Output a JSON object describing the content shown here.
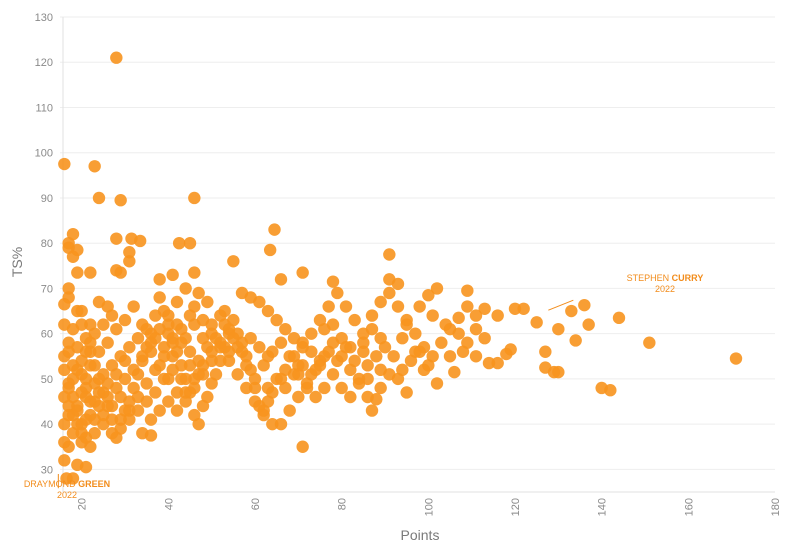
{
  "chart_data": {
    "type": "scatter",
    "title": "",
    "xlabel": "Points",
    "ylabel": "TS%",
    "xlim": [
      15,
      180
    ],
    "ylim": [
      25,
      130
    ],
    "x_ticks": [
      20,
      40,
      60,
      80,
      100,
      120,
      140,
      160,
      180
    ],
    "y_ticks": [
      30,
      40,
      50,
      60,
      70,
      80,
      90,
      100,
      110,
      120,
      130
    ],
    "grid": "horizontal",
    "colors": {
      "point": "#f7931e",
      "grid": "#eeeeee",
      "annotation": "#f28c1b"
    },
    "annotations": [
      {
        "line1_normal": "STEPHEN ",
        "line1_bold": "CURRY",
        "line2": "2022",
        "x": 136,
        "y": 66.3
      },
      {
        "line1_normal": "DRAYMOND ",
        "line1_bold": "GREEN",
        "line2": "2022",
        "x": 16,
        "y": 27.6
      }
    ],
    "points": [
      [
        28,
        121
      ],
      [
        16,
        97.5
      ],
      [
        23,
        97
      ],
      [
        24,
        90
      ],
      [
        29,
        89.5
      ],
      [
        46,
        90
      ],
      [
        64.5,
        83
      ],
      [
        18,
        82
      ],
      [
        28,
        81
      ],
      [
        31.5,
        81
      ],
      [
        33.5,
        80.5
      ],
      [
        42.5,
        80
      ],
      [
        45,
        80
      ],
      [
        17,
        80
      ],
      [
        17,
        79
      ],
      [
        19,
        78.5
      ],
      [
        31,
        78
      ],
      [
        63.5,
        78.5
      ],
      [
        91,
        77.5
      ],
      [
        55,
        76
      ],
      [
        31,
        76
      ],
      [
        18,
        77
      ],
      [
        17,
        70
      ],
      [
        17,
        68
      ],
      [
        16,
        66.5
      ],
      [
        19,
        73.5
      ],
      [
        22,
        73.5
      ],
      [
        28,
        74
      ],
      [
        29,
        73.5
      ],
      [
        38,
        72
      ],
      [
        41,
        73
      ],
      [
        46,
        73.5
      ],
      [
        66,
        72
      ],
      [
        71,
        73.5
      ],
      [
        78,
        71.5
      ],
      [
        91,
        72
      ],
      [
        93,
        71
      ],
      [
        102,
        70
      ],
      [
        109,
        69.5
      ],
      [
        136,
        66.3
      ],
      [
        144,
        63.5
      ],
      [
        137,
        62
      ],
      [
        151,
        58
      ],
      [
        171,
        54.5
      ],
      [
        140,
        48
      ],
      [
        142,
        47.5
      ],
      [
        130,
        51.5
      ],
      [
        129,
        51.5
      ],
      [
        134,
        58.5
      ],
      [
        130,
        61
      ],
      [
        125,
        62.5
      ],
      [
        127,
        56
      ],
      [
        127,
        52.5
      ],
      [
        133,
        65
      ],
      [
        120,
        65.5
      ],
      [
        122,
        65.5
      ],
      [
        116,
        64
      ],
      [
        119,
        56.5
      ],
      [
        113,
        65.5
      ],
      [
        111,
        64
      ],
      [
        109,
        66
      ],
      [
        107,
        63.5
      ],
      [
        104,
        62
      ],
      [
        101,
        64
      ],
      [
        98,
        66
      ],
      [
        95,
        62
      ],
      [
        94,
        59
      ],
      [
        97,
        56
      ],
      [
        99,
        52
      ],
      [
        100,
        68.5
      ],
      [
        105,
        55
      ],
      [
        108,
        56
      ],
      [
        111,
        55
      ],
      [
        114,
        53.5
      ],
      [
        116,
        53.5
      ],
      [
        118,
        55.5
      ],
      [
        106,
        51.5
      ],
      [
        102,
        49
      ],
      [
        95,
        47
      ],
      [
        91,
        51
      ],
      [
        93,
        50
      ],
      [
        89,
        52
      ],
      [
        87,
        43
      ],
      [
        88,
        45.5
      ],
      [
        89,
        48
      ],
      [
        86,
        50
      ],
      [
        85,
        56
      ],
      [
        82,
        57
      ],
      [
        80,
        59
      ],
      [
        78,
        62
      ],
      [
        76,
        61
      ],
      [
        75,
        54
      ],
      [
        73,
        56
      ],
      [
        71,
        58
      ],
      [
        70,
        53
      ],
      [
        69,
        55
      ],
      [
        67,
        52
      ],
      [
        66,
        50
      ],
      [
        64,
        47
      ],
      [
        63,
        45
      ],
      [
        62,
        42
      ],
      [
        61,
        44
      ],
      [
        60,
        48
      ],
      [
        59,
        52
      ],
      [
        58,
        55
      ],
      [
        57,
        58
      ],
      [
        56,
        60
      ],
      [
        55,
        63
      ],
      [
        54,
        61
      ],
      [
        53,
        57
      ],
      [
        52,
        54
      ],
      [
        51,
        51
      ],
      [
        50,
        49
      ],
      [
        49,
        46
      ],
      [
        48,
        44
      ],
      [
        47,
        40
      ],
      [
        46,
        42
      ],
      [
        45,
        47
      ],
      [
        44,
        50
      ],
      [
        43,
        53
      ],
      [
        42,
        56
      ],
      [
        41,
        59
      ],
      [
        40,
        62
      ],
      [
        39,
        65
      ],
      [
        38,
        68
      ],
      [
        37,
        64
      ],
      [
        36,
        60
      ],
      [
        35,
        57
      ],
      [
        34,
        54
      ],
      [
        33,
        51
      ],
      [
        32,
        48
      ],
      [
        31,
        45
      ],
      [
        30,
        43
      ],
      [
        29,
        39
      ],
      [
        28,
        37
      ],
      [
        27,
        41
      ],
      [
        26,
        44
      ],
      [
        25,
        47
      ],
      [
        24,
        50
      ],
      [
        23,
        53
      ],
      [
        22,
        56
      ],
      [
        21,
        59
      ],
      [
        20,
        62
      ],
      [
        19,
        65
      ],
      [
        18,
        61
      ],
      [
        17,
        58
      ],
      [
        16,
        55
      ],
      [
        16,
        52
      ],
      [
        17,
        49
      ],
      [
        18,
        46
      ],
      [
        19,
        43
      ],
      [
        20,
        40
      ],
      [
        21,
        37
      ],
      [
        22,
        35
      ],
      [
        19,
        31
      ],
      [
        21,
        30.5
      ],
      [
        16,
        32
      ],
      [
        17,
        35
      ],
      [
        16,
        36
      ],
      [
        18,
        28
      ],
      [
        16.5,
        28
      ],
      [
        24,
        67
      ],
      [
        26,
        66
      ],
      [
        27,
        64
      ],
      [
        25,
        62
      ],
      [
        23,
        60
      ],
      [
        22,
        58
      ],
      [
        21,
        56
      ],
      [
        20,
        54
      ],
      [
        19,
        52
      ],
      [
        18,
        50
      ],
      [
        17,
        48
      ],
      [
        16,
        46
      ],
      [
        17,
        44
      ],
      [
        18,
        42
      ],
      [
        19,
        40
      ],
      [
        20,
        38
      ],
      [
        22,
        42
      ],
      [
        24,
        44
      ],
      [
        26,
        46
      ],
      [
        28,
        48
      ],
      [
        30,
        50
      ],
      [
        32,
        52
      ],
      [
        34,
        55
      ],
      [
        36,
        58
      ],
      [
        38,
        61
      ],
      [
        40,
        64
      ],
      [
        42,
        67
      ],
      [
        44,
        70
      ],
      [
        46,
        66
      ],
      [
        48,
        63
      ],
      [
        50,
        60
      ],
      [
        52,
        57
      ],
      [
        54,
        54
      ],
      [
        56,
        51
      ],
      [
        58,
        48
      ],
      [
        60,
        45
      ],
      [
        62,
        43
      ],
      [
        64,
        40
      ],
      [
        66,
        40
      ],
      [
        68,
        43
      ],
      [
        70,
        46
      ],
      [
        72,
        49
      ],
      [
        74,
        52
      ],
      [
        76,
        55
      ],
      [
        78,
        58
      ],
      [
        80,
        55
      ],
      [
        82,
        52
      ],
      [
        84,
        49
      ],
      [
        86,
        46
      ],
      [
        61,
        67
      ],
      [
        63,
        65
      ],
      [
        65,
        63
      ],
      [
        67,
        61
      ],
      [
        69,
        59
      ],
      [
        71,
        57
      ],
      [
        73,
        60
      ],
      [
        75,
        63
      ],
      [
        77,
        66
      ],
      [
        79,
        69
      ],
      [
        81,
        66
      ],
      [
        83,
        63
      ],
      [
        85,
        60
      ],
      [
        87,
        64
      ],
      [
        89,
        67
      ],
      [
        91,
        69
      ],
      [
        93,
        66
      ],
      [
        95,
        63
      ],
      [
        97,
        60
      ],
      [
        99,
        57
      ],
      [
        101,
        55
      ],
      [
        103,
        58
      ],
      [
        105,
        61
      ],
      [
        107,
        60
      ],
      [
        109,
        58
      ],
      [
        111,
        61
      ],
      [
        113,
        59
      ],
      [
        57,
        69
      ],
      [
        59,
        68
      ],
      [
        53,
        65
      ],
      [
        49,
        67
      ],
      [
        47,
        69
      ],
      [
        45,
        64
      ],
      [
        43,
        61
      ],
      [
        41,
        58
      ],
      [
        39,
        55
      ],
      [
        37,
        52
      ],
      [
        35,
        49
      ],
      [
        33,
        46
      ],
      [
        31,
        43
      ],
      [
        29,
        41
      ],
      [
        27,
        38
      ],
      [
        25,
        42
      ],
      [
        23,
        45
      ],
      [
        21,
        48
      ],
      [
        20,
        51
      ],
      [
        22,
        53
      ],
      [
        24,
        56
      ],
      [
        26,
        58
      ],
      [
        28,
        61
      ],
      [
        30,
        63
      ],
      [
        32,
        66
      ],
      [
        34,
        62
      ],
      [
        36,
        56
      ],
      [
        38,
        53
      ],
      [
        40,
        50
      ],
      [
        42,
        47
      ],
      [
        44,
        45
      ],
      [
        46,
        48
      ],
      [
        48,
        51
      ],
      [
        50,
        54
      ],
      [
        52,
        58
      ],
      [
        54,
        60
      ],
      [
        56,
        57
      ],
      [
        58,
        53
      ],
      [
        60,
        50
      ],
      [
        62,
        53
      ],
      [
        64,
        56
      ],
      [
        66,
        58
      ],
      [
        68,
        55
      ],
      [
        70,
        51
      ],
      [
        72,
        48
      ],
      [
        74,
        46
      ],
      [
        76,
        48
      ],
      [
        78,
        51
      ],
      [
        80,
        48
      ],
      [
        82,
        46
      ],
      [
        84,
        50
      ],
      [
        86,
        53
      ],
      [
        88,
        55
      ],
      [
        90,
        57
      ],
      [
        92,
        55
      ],
      [
        94,
        52
      ],
      [
        96,
        54
      ],
      [
        98,
        56
      ],
      [
        100,
        53
      ],
      [
        35,
        61
      ],
      [
        37,
        59
      ],
      [
        39,
        57
      ],
      [
        41,
        55
      ],
      [
        43,
        58
      ],
      [
        45,
        56
      ],
      [
        47,
        54
      ],
      [
        49,
        57
      ],
      [
        51,
        59
      ],
      [
        53,
        62
      ],
      [
        55,
        59
      ],
      [
        57,
        56
      ],
      [
        59,
        59
      ],
      [
        61,
        57
      ],
      [
        63,
        55
      ],
      [
        33,
        59
      ],
      [
        31,
        57
      ],
      [
        29,
        55
      ],
      [
        27,
        53
      ],
      [
        25,
        51
      ],
      [
        23,
        49
      ],
      [
        21,
        46
      ],
      [
        19,
        44
      ],
      [
        17,
        42
      ],
      [
        16,
        40
      ],
      [
        18,
        38
      ],
      [
        20,
        36
      ],
      [
        36,
        41
      ],
      [
        38,
        43
      ],
      [
        40,
        45
      ],
      [
        42,
        43
      ],
      [
        44,
        47
      ],
      [
        46,
        50
      ],
      [
        48,
        53
      ],
      [
        50,
        56
      ],
      [
        30,
        54
      ],
      [
        28,
        51
      ],
      [
        26,
        49
      ],
      [
        24,
        47
      ],
      [
        71,
        35
      ],
      [
        22,
        62
      ],
      [
        20,
        65
      ],
      [
        16,
        62
      ],
      [
        17,
        56
      ],
      [
        18,
        53
      ],
      [
        19,
        57
      ],
      [
        20,
        47
      ],
      [
        21,
        50
      ],
      [
        22,
        45
      ],
      [
        23,
        41
      ],
      [
        34,
        38
      ],
      [
        36,
        37.5
      ],
      [
        40,
        60
      ],
      [
        42,
        62
      ],
      [
        44,
        59
      ],
      [
        46,
        62
      ],
      [
        48,
        59
      ],
      [
        50,
        62
      ],
      [
        52,
        64
      ],
      [
        54,
        56
      ],
      [
        47,
        51
      ],
      [
        45,
        53
      ],
      [
        43,
        50
      ],
      [
        41,
        52
      ],
      [
        39,
        50
      ],
      [
        37,
        47
      ],
      [
        35,
        45
      ],
      [
        33,
        43
      ],
      [
        31,
        41
      ],
      [
        29,
        46
      ],
      [
        27,
        44
      ],
      [
        25,
        40
      ],
      [
        23,
        38
      ],
      [
        21,
        41
      ],
      [
        63,
        48
      ],
      [
        65,
        50
      ],
      [
        67,
        48
      ],
      [
        69,
        51
      ],
      [
        71,
        53
      ],
      [
        73,
        51
      ],
      [
        75,
        53
      ],
      [
        77,
        56
      ],
      [
        79,
        54
      ],
      [
        81,
        57
      ],
      [
        83,
        54
      ],
      [
        85,
        58
      ],
      [
        87,
        61
      ],
      [
        89,
        59
      ]
    ]
  }
}
